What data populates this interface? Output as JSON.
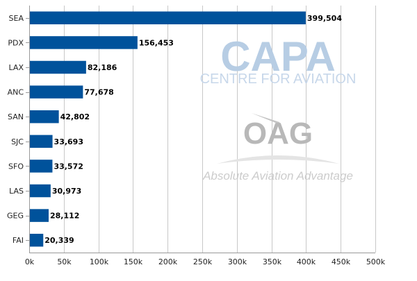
{
  "watermarks": {
    "capa_logo": "CAPA",
    "capa_tagline": "CENTRE FOR AVIATION",
    "oag_logo": "OAG",
    "oag_tagline": "Absolute Aviation Advantage"
  },
  "colors": {
    "bar": "#00529b",
    "grid": "#c8c8c8",
    "axis": "#999999"
  },
  "chart_data": {
    "type": "bar",
    "orientation": "horizontal",
    "title": "",
    "xlabel": "",
    "ylabel": "",
    "categories": [
      "SEA",
      "PDX",
      "LAX",
      "ANC",
      "SAN",
      "SJC",
      "SFO",
      "LAS",
      "GEG",
      "FAI"
    ],
    "values": [
      399504,
      156453,
      82186,
      77678,
      42802,
      33693,
      33572,
      30973,
      28112,
      20339
    ],
    "value_labels": [
      "399,504",
      "156,453",
      "82,186",
      "77,678",
      "42,802",
      "33,693",
      "33,572",
      "30,973",
      "28,112",
      "20,339"
    ],
    "xlim": [
      0,
      500000
    ],
    "xticks": [
      0,
      50000,
      100000,
      150000,
      200000,
      250000,
      300000,
      350000,
      400000,
      450000,
      500000
    ],
    "xtick_labels": [
      "0k",
      "50k",
      "100k",
      "150k",
      "200k",
      "250k",
      "300k",
      "350k",
      "400k",
      "450k",
      "500k"
    ],
    "grid": true,
    "legend": "none"
  }
}
